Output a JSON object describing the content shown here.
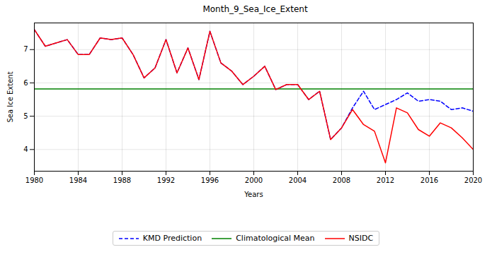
{
  "chart_data": {
    "type": "line",
    "title": "Month_9_Sea_Ice_Extent",
    "x_label": "Years",
    "y_label": "Sea Ice Extent",
    "x": [
      1980,
      1981,
      1982,
      1983,
      1984,
      1985,
      1986,
      1987,
      1988,
      1989,
      1990,
      1991,
      1992,
      1993,
      1994,
      1995,
      1996,
      1997,
      1998,
      1999,
      2000,
      2001,
      2002,
      2003,
      2004,
      2005,
      2006,
      2007,
      2008,
      2009,
      2010,
      2011,
      2012,
      2013,
      2014,
      2015,
      2016,
      2017,
      2018,
      2019,
      2020
    ],
    "series": [
      {
        "name": "KMD Prediction",
        "color": "#0000ff",
        "line_style": "dashed",
        "values": [
          7.6,
          7.1,
          7.2,
          7.3,
          6.85,
          6.85,
          7.35,
          7.3,
          7.35,
          6.85,
          6.15,
          6.45,
          7.3,
          6.3,
          7.05,
          6.1,
          7.55,
          6.6,
          6.35,
          5.95,
          6.2,
          6.5,
          5.8,
          5.95,
          5.95,
          5.5,
          5.75,
          4.3,
          4.65,
          5.25,
          5.75,
          5.2,
          5.35,
          5.5,
          5.7,
          5.45,
          5.5,
          5.45,
          5.2,
          5.25,
          5.15
        ]
      },
      {
        "name": "Climatological Mean",
        "color": "#008000",
        "line_style": "solid",
        "values": [
          5.82,
          5.82,
          5.82,
          5.82,
          5.82,
          5.82,
          5.82,
          5.82,
          5.82,
          5.82,
          5.82,
          5.82,
          5.82,
          5.82,
          5.82,
          5.82,
          5.82,
          5.82,
          5.82,
          5.82,
          5.82,
          5.82,
          5.82,
          5.82,
          5.82,
          5.82,
          5.82,
          5.82,
          5.82,
          5.82,
          5.82,
          5.82,
          5.82,
          5.82,
          5.82,
          5.82,
          5.82,
          5.82,
          5.82,
          5.82,
          5.82
        ]
      },
      {
        "name": "NSIDC",
        "color": "#ff0000",
        "line_style": "solid",
        "values": [
          7.6,
          7.1,
          7.2,
          7.3,
          6.85,
          6.85,
          7.35,
          7.3,
          7.35,
          6.85,
          6.15,
          6.45,
          7.3,
          6.3,
          7.05,
          6.1,
          7.55,
          6.6,
          6.35,
          5.95,
          6.2,
          6.5,
          5.8,
          5.95,
          5.95,
          5.5,
          5.75,
          4.3,
          4.65,
          5.2,
          4.75,
          4.55,
          3.6,
          5.25,
          5.1,
          4.6,
          4.4,
          4.8,
          4.65,
          4.35,
          4.0
        ]
      }
    ],
    "xlim": [
      1980,
      2020
    ],
    "xticks": [
      1980,
      1984,
      1988,
      1992,
      1996,
      2000,
      2004,
      2008,
      2012,
      2016,
      2020
    ],
    "ylim": [
      3.35,
      7.8
    ],
    "yticks": [
      4,
      5,
      6,
      7
    ],
    "grid": true,
    "legend": "bottom"
  }
}
